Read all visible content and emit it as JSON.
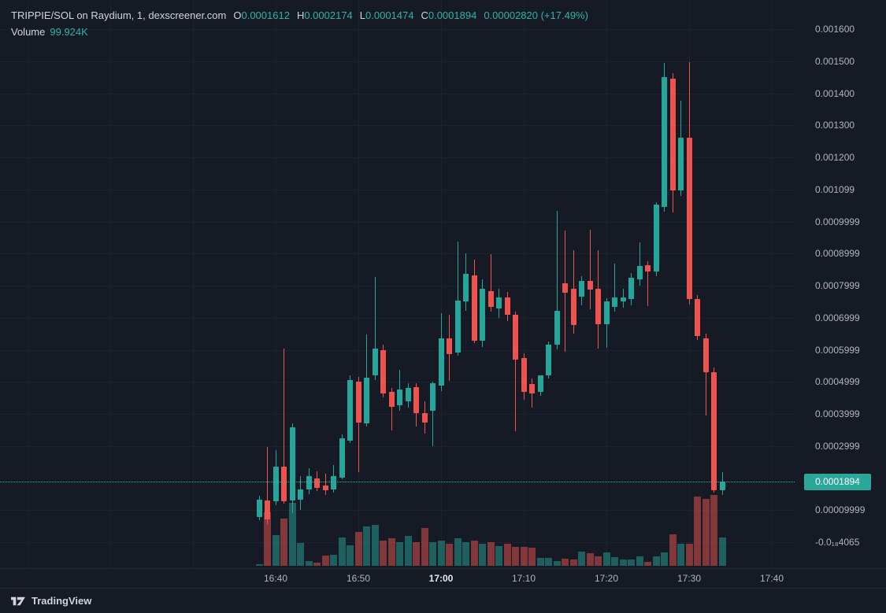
{
  "header": {
    "symbol_line": {
      "symbol": "TRIPPIE/SOL on Raydium, 1, dexscreener.com",
      "o_label": "O",
      "o_value": "0.0001612",
      "h_label": "H",
      "h_value": "0.0002174",
      "l_label": "L",
      "l_value": "0.0001474",
      "c_label": "C",
      "c_value": "0.0001894",
      "change_value": "0.00002820 (+17.49%)"
    },
    "volume_line": {
      "label": "Volume",
      "value": "99.924K"
    }
  },
  "footer": {
    "brand": "TradingView"
  },
  "colors": {
    "background": "#151a25",
    "up": "#26a69a",
    "down": "#ef5350",
    "grid": "#1d2230",
    "axis_text": "#b2b5be",
    "header_text": "#d1d4dc",
    "value_text": "#2eb5a6",
    "price_label_bg": "#2aa79b",
    "price_label_text": "#ffffff",
    "separator": "#222838"
  },
  "price_axis": {
    "labels": [
      {
        "text": "0.001600",
        "value": 0.0016
      },
      {
        "text": "0.001500",
        "value": 0.0015
      },
      {
        "text": "0.001400",
        "value": 0.0014
      },
      {
        "text": "0.001300",
        "value": 0.0013
      },
      {
        "text": "0.001200",
        "value": 0.0012
      },
      {
        "text": "0.001099",
        "value": 0.001099
      },
      {
        "text": "0.0009999",
        "value": 0.0009999
      },
      {
        "text": "0.0008999",
        "value": 0.0008999
      },
      {
        "text": "0.0007999",
        "value": 0.0007999
      },
      {
        "text": "0.0006999",
        "value": 0.0006999
      },
      {
        "text": "0.0005999",
        "value": 0.0005999
      },
      {
        "text": "0.0004999",
        "value": 0.0004999
      },
      {
        "text": "0.0003999",
        "value": 0.0003999
      },
      {
        "text": "0.0002999",
        "value": 0.0002999
      },
      {
        "text": "0.00009999",
        "value": 9.999e-05
      },
      {
        "text": "-0.0₁₈4065",
        "value": 0
      }
    ],
    "current_price_label": "0.0001894",
    "current_price_value": 0.0001894
  },
  "time_axis": {
    "labels": [
      {
        "text": "16:40",
        "index": 2,
        "bold": false
      },
      {
        "text": "16:50",
        "index": 12,
        "bold": false
      },
      {
        "text": "17:00",
        "index": 22,
        "bold": true
      },
      {
        "text": "17:10",
        "index": 32,
        "bold": false
      },
      {
        "text": "17:20",
        "index": 42,
        "bold": false
      },
      {
        "text": "17:30",
        "index": 52,
        "bold": false
      },
      {
        "text": "17:40",
        "index": 62,
        "bold": false
      }
    ],
    "gridline_indices": [
      -28,
      -18,
      -8,
      2,
      12,
      22,
      32,
      42,
      52,
      62
    ]
  },
  "chart_data": {
    "type": "candlestick",
    "title": "TRIPPIE/SOL on Raydium, 1, dexscreener.com",
    "symbol": "TRIPPIE/SOL",
    "exchange": "Raydium",
    "interval_minutes": 1,
    "source": "dexscreener.com",
    "legend_position": "top-left",
    "grid": true,
    "ylim": [
      0,
      0.00165
    ],
    "current_candle": {
      "open": 0.0001612,
      "high": 0.0002174,
      "low": 0.0001474,
      "close": 0.0001894,
      "change": 2.82e-05,
      "change_pct": 17.49,
      "volume_display": "99.924K"
    },
    "times": [
      "16:38",
      "16:39",
      "16:40",
      "16:41",
      "16:42",
      "16:43",
      "16:44",
      "16:45",
      "16:46",
      "16:47",
      "16:48",
      "16:49",
      "16:50",
      "16:51",
      "16:52",
      "16:53",
      "16:54",
      "16:55",
      "16:56",
      "16:57",
      "16:58",
      "16:59",
      "17:00",
      "17:01",
      "17:02",
      "17:03",
      "17:04",
      "17:05",
      "17:06",
      "17:07",
      "17:08",
      "17:09",
      "17:10",
      "17:11",
      "17:12",
      "17:13",
      "17:14",
      "17:15",
      "17:16",
      "17:17",
      "17:18",
      "17:19",
      "17:20",
      "17:21",
      "17:22",
      "17:23",
      "17:24",
      "17:25",
      "17:26",
      "17:27",
      "17:28",
      "17:29",
      "17:30",
      "17:31",
      "17:32",
      "17:33",
      "17:34"
    ],
    "candles": [
      [
        8e-05,
        0.000145,
        7e-05,
        0.000133
      ],
      [
        0.00013,
        0.000296,
        5.5e-05,
        7.1e-05
      ],
      [
        0.000128,
        0.000287,
        0.000115,
        0.000236
      ],
      [
        0.000236,
        0.000604,
        0.00012,
        0.000128
      ],
      [
        0.00013,
        0.00037,
        9e-05,
        0.000358
      ],
      [
        0.000133,
        0.000206,
        0.000101,
        0.000164
      ],
      [
        0.000164,
        0.00023,
        0.00015,
        0.000206
      ],
      [
        0.000199,
        0.000221,
        0.00016,
        0.000169
      ],
      [
        0.000177,
        0.000214,
        0.000147,
        0.000162
      ],
      [
        0.000164,
        0.00024,
        0.000155,
        0.000206
      ],
      [
        0.000201,
        0.000335,
        0.000195,
        0.000324
      ],
      [
        0.000317,
        0.00052,
        0.00031,
        0.000505
      ],
      [
        0.0005,
        0.000515,
        0.000218,
        0.000373
      ],
      [
        0.000371,
        0.000648,
        0.00036,
        0.000513
      ],
      [
        0.00052,
        0.000827,
        0.000505,
        0.000604
      ],
      [
        0.000599,
        0.000615,
        0.00045,
        0.000464
      ],
      [
        0.000469,
        0.00048,
        0.000348,
        0.000422
      ],
      [
        0.000427,
        0.000537,
        0.00041,
        0.000476
      ],
      [
        0.000439,
        0.000496,
        0.00042,
        0.000481
      ],
      [
        0.000483,
        0.000495,
        0.00036,
        0.000403
      ],
      [
        0.000403,
        0.00044,
        0.00034,
        0.000373
      ],
      [
        0.00041,
        0.0005,
        0.000299,
        0.000496
      ],
      [
        0.000488,
        0.000714,
        0.00047,
        0.000636
      ],
      [
        0.000636,
        0.00071,
        0.000505,
        0.000586
      ],
      [
        0.000591,
        0.000937,
        0.00058,
        0.000753
      ],
      [
        0.00075,
        0.0009,
        0.00072,
        0.000837
      ],
      [
        0.000832,
        0.00088,
        0.00062,
        0.000628
      ],
      [
        0.000628,
        0.00082,
        0.00061,
        0.00079
      ],
      [
        0.000783,
        0.000898,
        0.00072,
        0.000733
      ],
      [
        0.000728,
        0.00079,
        0.0007,
        0.000763
      ],
      [
        0.000763,
        0.00078,
        0.00069,
        0.000709
      ],
      [
        0.000709,
        0.00072,
        0.000346,
        0.000569
      ],
      [
        0.000574,
        0.00059,
        0.000444,
        0.000469
      ],
      [
        0.000493,
        0.00051,
        0.00042,
        0.000464
      ],
      [
        0.000469,
        0.00052,
        0.000455,
        0.00052
      ],
      [
        0.00052,
        0.000625,
        0.00051,
        0.000616
      ],
      [
        0.000616,
        0.001033,
        0.0006,
        0.000721
      ],
      [
        0.000807,
        0.000972,
        0.000594,
        0.000778
      ],
      [
        0.00079,
        0.00091,
        0.00065,
        0.000677
      ],
      [
        0.000766,
        0.00083,
        0.00074,
        0.000815
      ],
      [
        0.000815,
        0.000974,
        0.000726,
        0.000788
      ],
      [
        0.00079,
        0.00091,
        0.000603,
        0.00068
      ],
      [
        0.00068,
        0.00076,
        0.000606,
        0.000751
      ],
      [
        0.000734,
        0.000869,
        0.00072,
        0.000763
      ],
      [
        0.000751,
        0.00079,
        0.00073,
        0.000763
      ],
      [
        0.000758,
        0.00084,
        0.00074,
        0.000824
      ],
      [
        0.00082,
        0.000935,
        0.0008,
        0.000861
      ],
      [
        0.000864,
        0.000875,
        0.000734,
        0.000844
      ],
      [
        0.000844,
        0.00106,
        0.00083,
        0.001053
      ],
      [
        0.001045,
        0.001495,
        0.00103,
        0.00145
      ],
      [
        0.001445,
        0.001463,
        0.001028,
        0.001097
      ],
      [
        0.001097,
        0.001377,
        0.00108,
        0.001261
      ],
      [
        0.001261,
        0.001497,
        0.00074,
        0.000758
      ],
      [
        0.000758,
        0.00077,
        0.00063,
        0.000643
      ],
      [
        0.000636,
        0.00065,
        0.000395,
        0.00053
      ],
      [
        0.00053,
        0.000545,
        0.000155,
        0.000162
      ],
      [
        0.0001612,
        0.0002174,
        0.0001474,
        0.0001894
      ]
    ],
    "volumes_rel": [
      2,
      68,
      39,
      60,
      80,
      29,
      6,
      4,
      13,
      14,
      36,
      26,
      43,
      50,
      52,
      32,
      35,
      30,
      38,
      30,
      48,
      30,
      32,
      28,
      35,
      30,
      32,
      28,
      30,
      25,
      28,
      24,
      24,
      23,
      10,
      10,
      6,
      9,
      8,
      18,
      16,
      12,
      17,
      11,
      8,
      8,
      12,
      5,
      12,
      17,
      40,
      28,
      28,
      88,
      85,
      90,
      36
    ]
  }
}
